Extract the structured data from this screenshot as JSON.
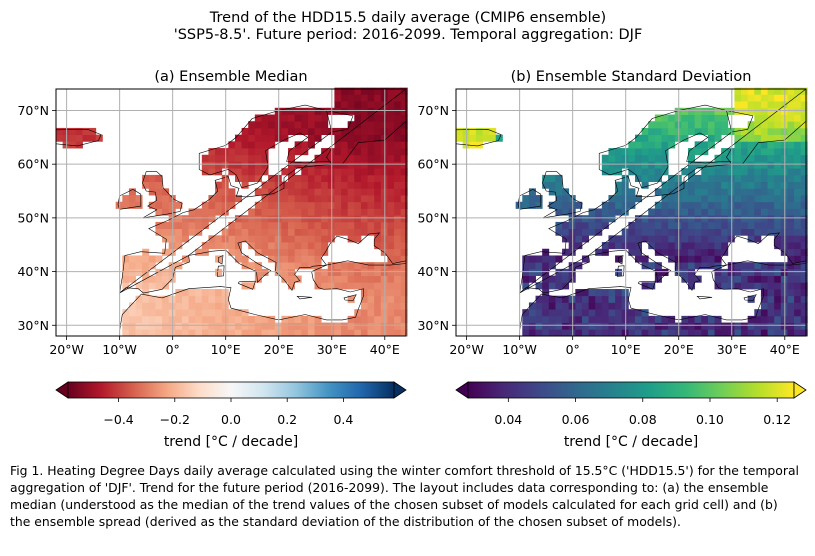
{
  "figure": {
    "title_line1": "Trend of the HDD15.5 daily average (CMIP6 ensemble)",
    "title_line2": "'SSP5-8.5'. Future period: 2016-2099. Temporal aggregation: DJF",
    "caption": "Fig 1. Heating Degree Days daily average calculated using the winter comfort threshold of 15.5°C ('HDD15.5') for the temporal aggregation of 'DJF'. Trend for the future period (2016-2099). The layout includes data corresponding to: (a) the ensemble median (understood as the median of the trend values of the chosen subset of models calculated for each grid cell) and (b) the ensemble spread (derived as the standard deviation of the distribution of the chosen subset of models)."
  },
  "colors": {
    "rdbu": [
      "#67001f",
      "#b2182b",
      "#d6604d",
      "#f4a582",
      "#fddbc7",
      "#f7f7f7",
      "#d1e5f0",
      "#92c5de",
      "#4393c3",
      "#2166ac",
      "#053061"
    ],
    "viridis": [
      "#440154",
      "#482878",
      "#3e4989",
      "#31688e",
      "#26828e",
      "#1f9e89",
      "#35b779",
      "#6ece58",
      "#b5de2b",
      "#fde725"
    ],
    "grid": "#b0b0b0",
    "coast": "#000000"
  },
  "chart_data": [
    {
      "type": "heatmap",
      "title": "(a) Ensemble Median",
      "xlim": [
        -22,
        44
      ],
      "ylim": [
        28,
        74
      ],
      "x_ticks": [
        -20,
        -10,
        0,
        10,
        20,
        30,
        40
      ],
      "x_tick_labels": [
        "20°W",
        "10°W",
        "0°",
        "10°E",
        "20°E",
        "30°E",
        "40°E"
      ],
      "y_ticks": [
        30,
        40,
        50,
        60,
        70
      ],
      "y_tick_labels": [
        "30°N",
        "40°N",
        "50°N",
        "60°N",
        "70°N"
      ],
      "grid": true,
      "colormap": "RdBu",
      "colorbar": {
        "label": "trend [°C / decade]",
        "range": [
          -0.58,
          0.58
        ],
        "extend": "both",
        "ticks": [
          -0.4,
          -0.2,
          0.0,
          0.2,
          0.4
        ],
        "tick_labels": [
          "−0.4",
          "−0.2",
          "0.0",
          "0.2",
          "0.4"
        ]
      },
      "value_description": {
        "approx_min": -0.55,
        "approx_max": -0.15,
        "pattern": "strongest decrease (about -0.5) over north-eastern Europe and Fennoscandia, weakest (about -0.2) over the Mediterranean and southern seas"
      }
    },
    {
      "type": "heatmap",
      "title": "(b) Ensemble Standard Deviation",
      "xlim": [
        -22,
        44
      ],
      "ylim": [
        28,
        74
      ],
      "x_ticks": [
        -20,
        -10,
        0,
        10,
        20,
        30,
        40
      ],
      "x_tick_labels": [
        "20°W",
        "10°W",
        "0°",
        "10°E",
        "20°E",
        "30°E",
        "40°E"
      ],
      "y_ticks": [
        30,
        40,
        50,
        60,
        70
      ],
      "y_tick_labels": [
        "30°N",
        "40°N",
        "50°N",
        "60°N",
        "70°N"
      ],
      "grid": true,
      "colormap": "viridis",
      "colorbar": {
        "label": "trend [°C / decade]",
        "range": [
          0.028,
          0.125
        ],
        "extend": "both",
        "ticks": [
          0.04,
          0.06,
          0.08,
          0.1,
          0.12
        ],
        "tick_labels": [
          "0.04",
          "0.06",
          "0.08",
          "0.10",
          "0.12"
        ]
      },
      "value_description": {
        "approx_min": 0.03,
        "approx_max": 0.12,
        "pattern": "highest spread (about 0.11-0.12) over northern Fennoscandia and Iceland, low spread (about 0.03-0.05) over the Mediterranean"
      }
    }
  ]
}
